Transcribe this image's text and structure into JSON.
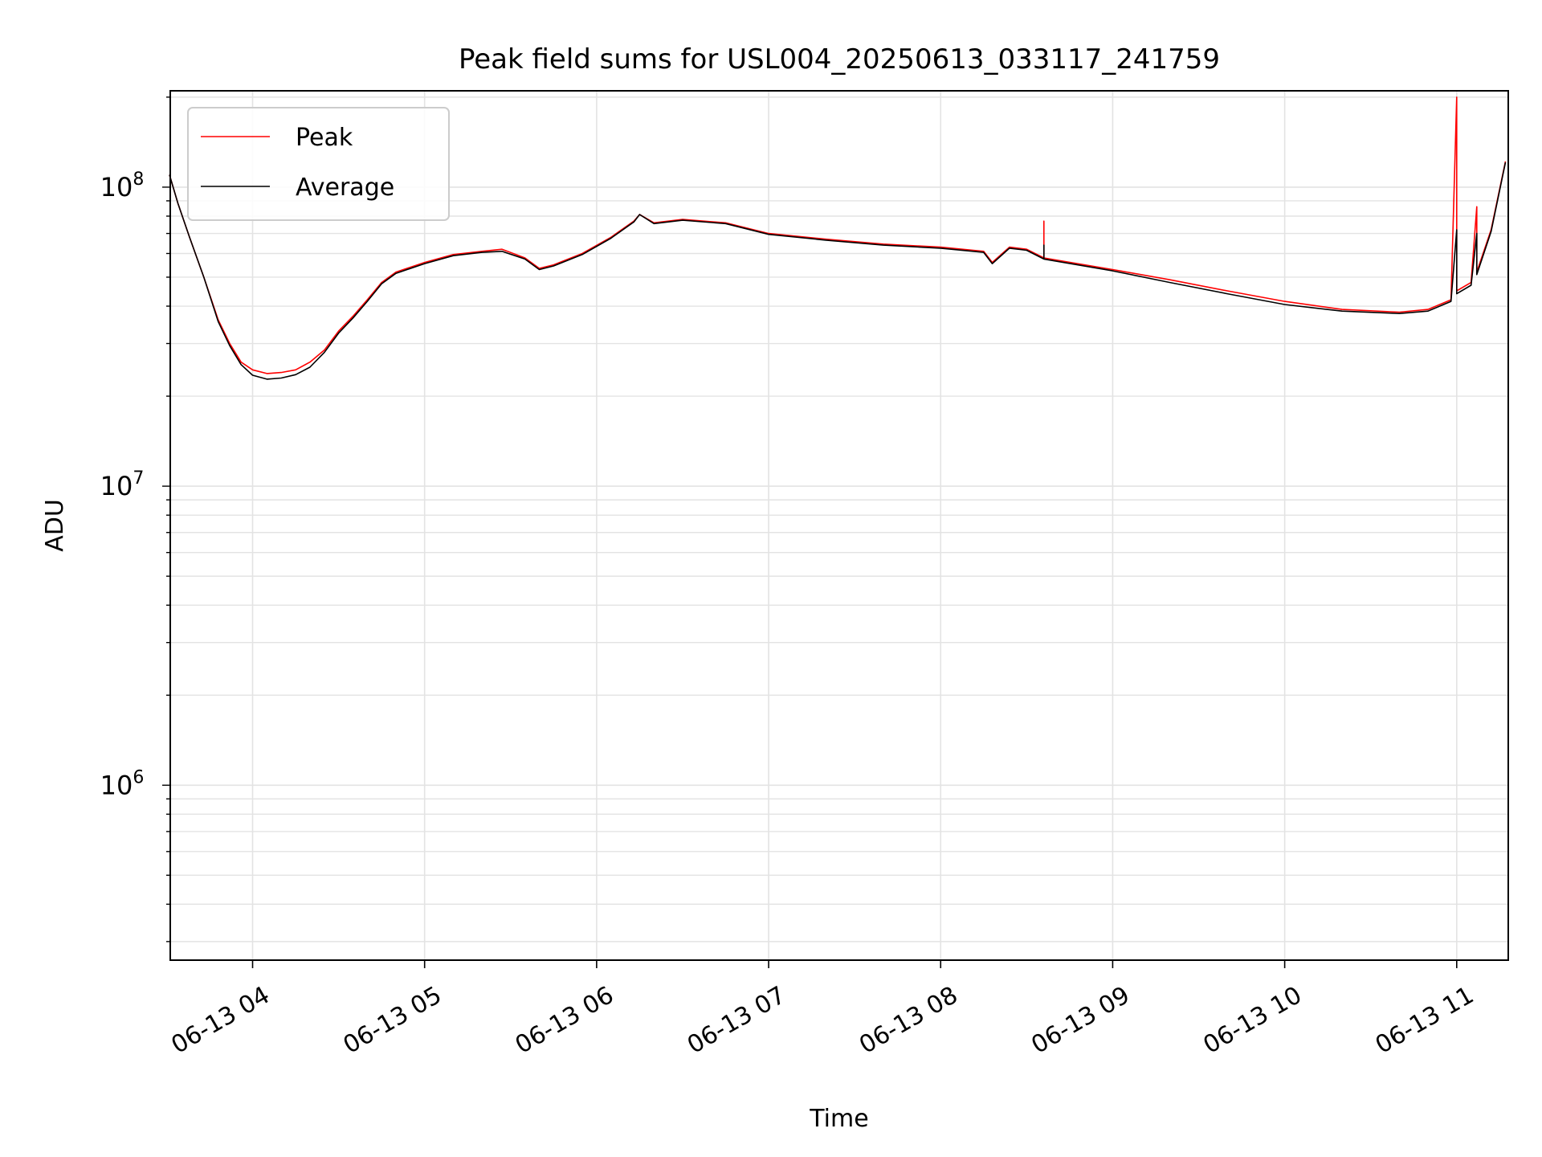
{
  "chart_data": {
    "type": "line",
    "title": "Peak field sums for USL004_20250613_033117_241759",
    "xlabel": "Time",
    "ylabel": "ADU",
    "yscale": "log",
    "ylim": [
      260000,
      210000000
    ],
    "xlim": [
      "2025-06-13 03:31:17",
      "2025-06-13 11:17:59"
    ],
    "grid": true,
    "legend_position": "upper left",
    "x_tick_labels": [
      "06-13 04",
      "06-13 05",
      "06-13 06",
      "06-13 07",
      "06-13 08",
      "06-13 09",
      "06-13 10",
      "06-13 11"
    ],
    "x_tick_times": [
      "2025-06-13 04:00",
      "2025-06-13 05:00",
      "2025-06-13 06:00",
      "2025-06-13 07:00",
      "2025-06-13 08:00",
      "2025-06-13 09:00",
      "2025-06-13 10:00",
      "2025-06-13 11:00"
    ],
    "y_tick_labels": [
      {
        "value": 1000000,
        "base": "10",
        "exp": "6"
      },
      {
        "value": 10000000,
        "base": "10",
        "exp": "7"
      },
      {
        "value": 100000000,
        "base": "10",
        "exp": "8"
      }
    ],
    "series": [
      {
        "name": "Peak",
        "color": "#ff0000",
        "points": [
          [
            "2025-06-13 03:31",
            110000000
          ],
          [
            "2025-06-13 03:34",
            88000000
          ],
          [
            "2025-06-13 03:38",
            68000000
          ],
          [
            "2025-06-13 03:43",
            50000000
          ],
          [
            "2025-06-13 03:48",
            36000000
          ],
          [
            "2025-06-13 03:52",
            30000000
          ],
          [
            "2025-06-13 03:56",
            26000000
          ],
          [
            "2025-06-13 04:00",
            24500000
          ],
          [
            "2025-06-13 04:05",
            23800000
          ],
          [
            "2025-06-13 04:10",
            24000000
          ],
          [
            "2025-06-13 04:15",
            24500000
          ],
          [
            "2025-06-13 04:20",
            26000000
          ],
          [
            "2025-06-13 04:25",
            28500000
          ],
          [
            "2025-06-13 04:30",
            33000000
          ],
          [
            "2025-06-13 04:35",
            37000000
          ],
          [
            "2025-06-13 04:40",
            42000000
          ],
          [
            "2025-06-13 04:45",
            48000000
          ],
          [
            "2025-06-13 04:50",
            52000000
          ],
          [
            "2025-06-13 05:00",
            56000000
          ],
          [
            "2025-06-13 05:10",
            59500000
          ],
          [
            "2025-06-13 05:20",
            61000000
          ],
          [
            "2025-06-13 05:27",
            62000000
          ],
          [
            "2025-06-13 05:35",
            58000000
          ],
          [
            "2025-06-13 05:40",
            53500000
          ],
          [
            "2025-06-13 05:45",
            55000000
          ],
          [
            "2025-06-13 05:55",
            60000000
          ],
          [
            "2025-06-13 06:05",
            68000000
          ],
          [
            "2025-06-13 06:13",
            77000000
          ],
          [
            "2025-06-13 06:15",
            81000000
          ],
          [
            "2025-06-13 06:20",
            76000000
          ],
          [
            "2025-06-13 06:30",
            78000000
          ],
          [
            "2025-06-13 06:45",
            76000000
          ],
          [
            "2025-06-13 07:00",
            70000000
          ],
          [
            "2025-06-13 07:20",
            67000000
          ],
          [
            "2025-06-13 07:40",
            64500000
          ],
          [
            "2025-06-13 08:00",
            63000000
          ],
          [
            "2025-06-13 08:15",
            61000000
          ],
          [
            "2025-06-13 08:18",
            56000000
          ],
          [
            "2025-06-13 08:24",
            63000000
          ],
          [
            "2025-06-13 08:30",
            62000000
          ],
          [
            "2025-06-13 08:36",
            58000000
          ],
          [
            "2025-06-13 08:36",
            77000000
          ],
          [
            "2025-06-13 08:36",
            58000000
          ],
          [
            "2025-06-13 09:00",
            53000000
          ],
          [
            "2025-06-13 09:20",
            49000000
          ],
          [
            "2025-06-13 09:40",
            45000000
          ],
          [
            "2025-06-13 10:00",
            41500000
          ],
          [
            "2025-06-13 10:20",
            39000000
          ],
          [
            "2025-06-13 10:40",
            38200000
          ],
          [
            "2025-06-13 10:50",
            39000000
          ],
          [
            "2025-06-13 10:58",
            42000000
          ],
          [
            "2025-06-13 11:00",
            200000000
          ],
          [
            "2025-06-13 11:00",
            45000000
          ],
          [
            "2025-06-13 11:05",
            48000000
          ],
          [
            "2025-06-13 11:07",
            86000000
          ],
          [
            "2025-06-13 11:07",
            52000000
          ],
          [
            "2025-06-13 11:12",
            72000000
          ],
          [
            "2025-06-13 11:17",
            122000000
          ]
        ]
      },
      {
        "name": "Average",
        "color": "#000000",
        "points": [
          [
            "2025-06-13 03:31",
            110000000
          ],
          [
            "2025-06-13 03:34",
            88000000
          ],
          [
            "2025-06-13 03:38",
            68000000
          ],
          [
            "2025-06-13 03:43",
            50000000
          ],
          [
            "2025-06-13 03:48",
            35500000
          ],
          [
            "2025-06-13 03:52",
            29500000
          ],
          [
            "2025-06-13 03:56",
            25500000
          ],
          [
            "2025-06-13 04:00",
            23500000
          ],
          [
            "2025-06-13 04:05",
            22800000
          ],
          [
            "2025-06-13 04:10",
            23000000
          ],
          [
            "2025-06-13 04:15",
            23600000
          ],
          [
            "2025-06-13 04:20",
            25000000
          ],
          [
            "2025-06-13 04:25",
            28000000
          ],
          [
            "2025-06-13 04:30",
            32500000
          ],
          [
            "2025-06-13 04:35",
            36500000
          ],
          [
            "2025-06-13 04:40",
            41500000
          ],
          [
            "2025-06-13 04:45",
            47500000
          ],
          [
            "2025-06-13 04:50",
            51500000
          ],
          [
            "2025-06-13 05:00",
            55500000
          ],
          [
            "2025-06-13 05:10",
            59000000
          ],
          [
            "2025-06-13 05:20",
            60500000
          ],
          [
            "2025-06-13 05:27",
            61000000
          ],
          [
            "2025-06-13 05:35",
            57500000
          ],
          [
            "2025-06-13 05:40",
            53000000
          ],
          [
            "2025-06-13 05:45",
            54500000
          ],
          [
            "2025-06-13 05:55",
            59500000
          ],
          [
            "2025-06-13 06:05",
            67500000
          ],
          [
            "2025-06-13 06:13",
            76500000
          ],
          [
            "2025-06-13 06:15",
            81000000
          ],
          [
            "2025-06-13 06:20",
            75500000
          ],
          [
            "2025-06-13 06:30",
            77500000
          ],
          [
            "2025-06-13 06:45",
            75500000
          ],
          [
            "2025-06-13 07:00",
            69500000
          ],
          [
            "2025-06-13 07:20",
            66500000
          ],
          [
            "2025-06-13 07:40",
            64000000
          ],
          [
            "2025-06-13 08:00",
            62500000
          ],
          [
            "2025-06-13 08:15",
            60500000
          ],
          [
            "2025-06-13 08:18",
            55500000
          ],
          [
            "2025-06-13 08:24",
            62500000
          ],
          [
            "2025-06-13 08:30",
            61500000
          ],
          [
            "2025-06-13 08:36",
            57500000
          ],
          [
            "2025-06-13 08:36",
            64000000
          ],
          [
            "2025-06-13 08:36",
            57500000
          ],
          [
            "2025-06-13 09:00",
            52500000
          ],
          [
            "2025-06-13 09:20",
            48000000
          ],
          [
            "2025-06-13 09:40",
            44000000
          ],
          [
            "2025-06-13 10:00",
            40500000
          ],
          [
            "2025-06-13 10:20",
            38500000
          ],
          [
            "2025-06-13 10:40",
            37800000
          ],
          [
            "2025-06-13 10:50",
            38500000
          ],
          [
            "2025-06-13 10:58",
            41500000
          ],
          [
            "2025-06-13 11:00",
            72000000
          ],
          [
            "2025-06-13 11:00",
            44000000
          ],
          [
            "2025-06-13 11:05",
            47000000
          ],
          [
            "2025-06-13 11:07",
            70000000
          ],
          [
            "2025-06-13 11:07",
            51000000
          ],
          [
            "2025-06-13 11:12",
            71000000
          ],
          [
            "2025-06-13 11:17",
            121000000
          ]
        ]
      }
    ]
  }
}
